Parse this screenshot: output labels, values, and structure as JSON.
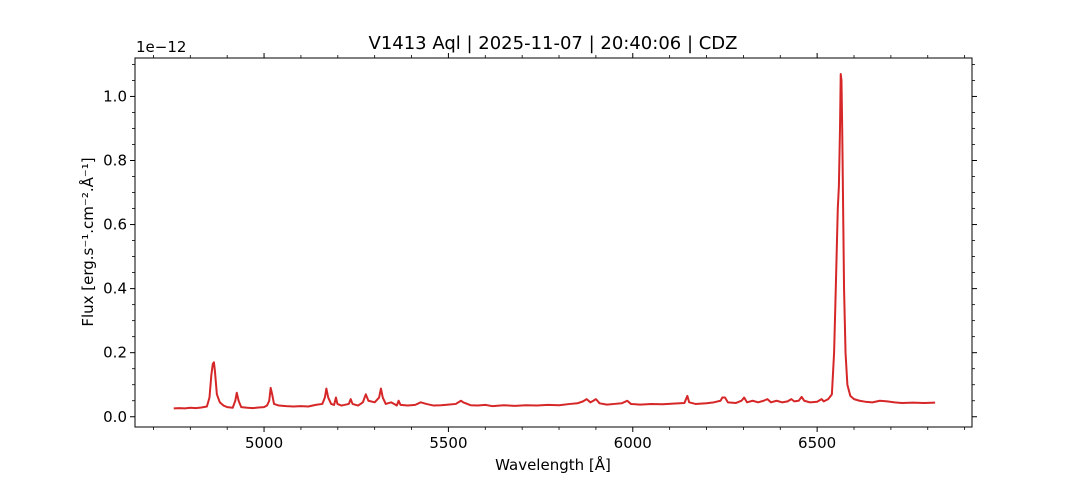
{
  "chart_data": {
    "type": "line",
    "title": "V1413 Aql | 2025-11-07 | 20:40:06 | CDZ",
    "xlabel": "Wavelength [Å]",
    "ylabel": "Flux [erg.s⁻¹.cm⁻².Å⁻¹]",
    "y_multiplier_label": "1e−12",
    "xlim": [
      4650,
      6920
    ],
    "ylim": [
      -0.032,
      1.12
    ],
    "y_scale_factor": 1e-12,
    "x_ticks": [
      5000,
      5500,
      6000,
      6500
    ],
    "x_tick_labels": [
      "5000",
      "5500",
      "6000",
      "6500"
    ],
    "y_ticks": [
      0.0,
      0.2,
      0.4,
      0.6,
      0.8,
      1.0
    ],
    "y_tick_labels": [
      "0.0",
      "0.2",
      "0.4",
      "0.6",
      "0.8",
      "1.0"
    ],
    "grid": false,
    "colors": {
      "series": "#d62728",
      "axes": "#000000"
    },
    "series": [
      {
        "points": [
          [
            4755,
            0.026
          ],
          [
            4770,
            0.027
          ],
          [
            4785,
            0.026
          ],
          [
            4800,
            0.028
          ],
          [
            4815,
            0.027
          ],
          [
            4830,
            0.029
          ],
          [
            4845,
            0.032
          ],
          [
            4852,
            0.06
          ],
          [
            4857,
            0.13
          ],
          [
            4861,
            0.165
          ],
          [
            4864,
            0.17
          ],
          [
            4867,
            0.14
          ],
          [
            4872,
            0.07
          ],
          [
            4880,
            0.045
          ],
          [
            4890,
            0.035
          ],
          [
            4900,
            0.03
          ],
          [
            4915,
            0.028
          ],
          [
            4922,
            0.05
          ],
          [
            4926,
            0.075
          ],
          [
            4931,
            0.05
          ],
          [
            4938,
            0.03
          ],
          [
            4955,
            0.028
          ],
          [
            4970,
            0.027
          ],
          [
            4985,
            0.029
          ],
          [
            5000,
            0.03
          ],
          [
            5008,
            0.035
          ],
          [
            5014,
            0.05
          ],
          [
            5018,
            0.09
          ],
          [
            5022,
            0.07
          ],
          [
            5027,
            0.04
          ],
          [
            5040,
            0.035
          ],
          [
            5060,
            0.033
          ],
          [
            5080,
            0.032
          ],
          [
            5100,
            0.033
          ],
          [
            5120,
            0.032
          ],
          [
            5140,
            0.037
          ],
          [
            5158,
            0.04
          ],
          [
            5165,
            0.06
          ],
          [
            5169,
            0.088
          ],
          [
            5174,
            0.06
          ],
          [
            5182,
            0.04
          ],
          [
            5190,
            0.037
          ],
          [
            5195,
            0.06
          ],
          [
            5199,
            0.04
          ],
          [
            5210,
            0.035
          ],
          [
            5230,
            0.04
          ],
          [
            5235,
            0.055
          ],
          [
            5240,
            0.04
          ],
          [
            5255,
            0.035
          ],
          [
            5268,
            0.045
          ],
          [
            5276,
            0.07
          ],
          [
            5283,
            0.05
          ],
          [
            5300,
            0.045
          ],
          [
            5312,
            0.06
          ],
          [
            5317,
            0.088
          ],
          [
            5322,
            0.06
          ],
          [
            5330,
            0.04
          ],
          [
            5345,
            0.045
          ],
          [
            5360,
            0.035
          ],
          [
            5365,
            0.05
          ],
          [
            5370,
            0.037
          ],
          [
            5390,
            0.035
          ],
          [
            5410,
            0.037
          ],
          [
            5425,
            0.045
          ],
          [
            5440,
            0.04
          ],
          [
            5460,
            0.035
          ],
          [
            5480,
            0.036
          ],
          [
            5500,
            0.038
          ],
          [
            5520,
            0.04
          ],
          [
            5534,
            0.05
          ],
          [
            5540,
            0.045
          ],
          [
            5560,
            0.036
          ],
          [
            5580,
            0.035
          ],
          [
            5600,
            0.037
          ],
          [
            5620,
            0.033
          ],
          [
            5650,
            0.036
          ],
          [
            5680,
            0.034
          ],
          [
            5710,
            0.036
          ],
          [
            5740,
            0.035
          ],
          [
            5770,
            0.037
          ],
          [
            5800,
            0.036
          ],
          [
            5830,
            0.04
          ],
          [
            5850,
            0.042
          ],
          [
            5865,
            0.048
          ],
          [
            5875,
            0.055
          ],
          [
            5885,
            0.045
          ],
          [
            5893,
            0.05
          ],
          [
            5900,
            0.055
          ],
          [
            5910,
            0.042
          ],
          [
            5930,
            0.038
          ],
          [
            5950,
            0.04
          ],
          [
            5970,
            0.042
          ],
          [
            5985,
            0.05
          ],
          [
            5995,
            0.04
          ],
          [
            6020,
            0.038
          ],
          [
            6050,
            0.04
          ],
          [
            6080,
            0.039
          ],
          [
            6110,
            0.041
          ],
          [
            6140,
            0.043
          ],
          [
            6148,
            0.065
          ],
          [
            6153,
            0.045
          ],
          [
            6170,
            0.04
          ],
          [
            6200,
            0.042
          ],
          [
            6220,
            0.045
          ],
          [
            6238,
            0.05
          ],
          [
            6243,
            0.06
          ],
          [
            6250,
            0.06
          ],
          [
            6258,
            0.045
          ],
          [
            6280,
            0.043
          ],
          [
            6295,
            0.05
          ],
          [
            6302,
            0.06
          ],
          [
            6310,
            0.045
          ],
          [
            6325,
            0.05
          ],
          [
            6340,
            0.045
          ],
          [
            6355,
            0.05
          ],
          [
            6365,
            0.055
          ],
          [
            6375,
            0.045
          ],
          [
            6390,
            0.05
          ],
          [
            6405,
            0.045
          ],
          [
            6420,
            0.048
          ],
          [
            6430,
            0.055
          ],
          [
            6438,
            0.048
          ],
          [
            6450,
            0.05
          ],
          [
            6458,
            0.062
          ],
          [
            6465,
            0.05
          ],
          [
            6480,
            0.045
          ],
          [
            6500,
            0.047
          ],
          [
            6512,
            0.055
          ],
          [
            6518,
            0.048
          ],
          [
            6530,
            0.055
          ],
          [
            6540,
            0.07
          ],
          [
            6546,
            0.2
          ],
          [
            6551,
            0.42
          ],
          [
            6556,
            0.65
          ],
          [
            6559,
            0.72
          ],
          [
            6562,
            0.9
          ],
          [
            6564,
            1.07
          ],
          [
            6566,
            1.05
          ],
          [
            6568,
            0.9
          ],
          [
            6570,
            0.7
          ],
          [
            6573,
            0.4
          ],
          [
            6577,
            0.2
          ],
          [
            6582,
            0.1
          ],
          [
            6590,
            0.065
          ],
          [
            6600,
            0.055
          ],
          [
            6615,
            0.05
          ],
          [
            6630,
            0.047
          ],
          [
            6650,
            0.045
          ],
          [
            6670,
            0.05
          ],
          [
            6690,
            0.048
          ],
          [
            6710,
            0.045
          ],
          [
            6730,
            0.043
          ],
          [
            6760,
            0.044
          ],
          [
            6790,
            0.043
          ],
          [
            6820,
            0.044
          ]
        ]
      }
    ]
  }
}
